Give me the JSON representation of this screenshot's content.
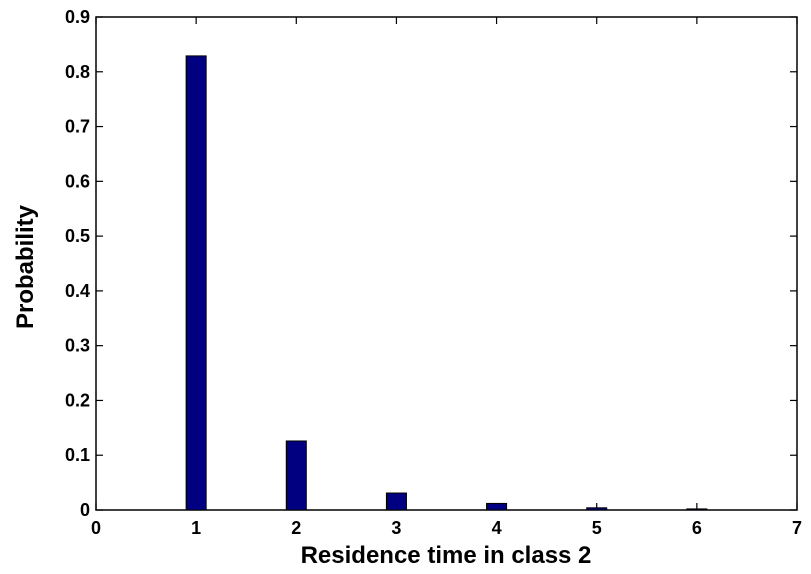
{
  "chart_data": {
    "type": "bar",
    "title": "",
    "xlabel": "Residence time in class 2",
    "ylabel": "Probability",
    "x": [
      1,
      2,
      3,
      4,
      5,
      6
    ],
    "values": [
      0.829,
      0.126,
      0.031,
      0.012,
      0.004,
      0.002
    ],
    "xlim": [
      0,
      7
    ],
    "ylim": [
      0,
      0.9
    ],
    "xticks": [
      "0",
      "1",
      "2",
      "3",
      "4",
      "5",
      "6",
      "7"
    ],
    "yticks": [
      "0",
      "0.1",
      "0.2",
      "0.3",
      "0.4",
      "0.5",
      "0.6",
      "0.7",
      "0.8",
      "0.9"
    ],
    "bar_color": "#000080",
    "grid": false,
    "legend": "none"
  }
}
